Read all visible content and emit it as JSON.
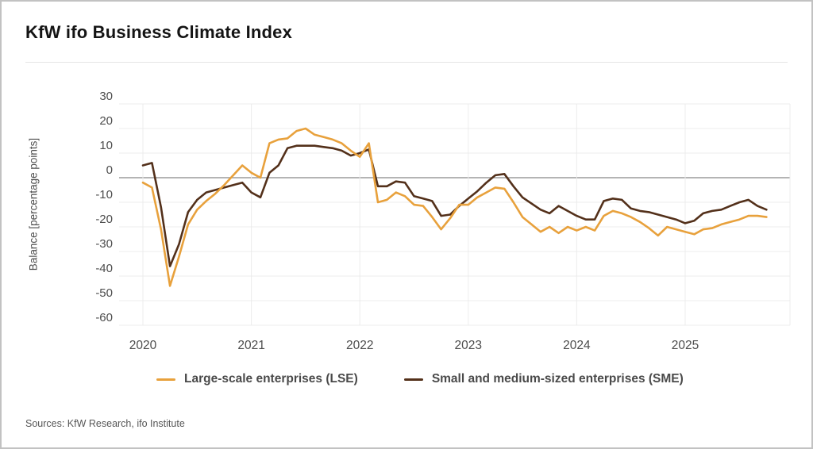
{
  "card": {
    "title": "KfW ifo Business Climate Index",
    "sources": "Sources: KfW Research, ifo Institute"
  },
  "chart_data": {
    "type": "line",
    "title": "KfW ifo Business Climate Index",
    "ylabel": "Balance [percentage points]",
    "ylim": [
      -60,
      30
    ],
    "y_ticks": [
      30,
      20,
      10,
      0,
      -10,
      -20,
      -30,
      -40,
      -50,
      -60
    ],
    "x_tick_labels": [
      "2020",
      "2021",
      "2022",
      "2023",
      "2024",
      "2025"
    ],
    "x_start": "2020-01",
    "x_frequency": "monthly",
    "grid": true,
    "legend_position": "bottom",
    "zero_line": true,
    "colors": {
      "grid": "#ececec",
      "zero_line": "#9c9c9c",
      "axis_text": "#4d4d4d"
    },
    "series": [
      {
        "name": "Large-scale enterprises (LSE)",
        "color": "#E8A13C",
        "values": [
          -2,
          -4,
          -21,
          -44,
          -32,
          -19,
          -13,
          -9.5,
          -6.5,
          -3,
          1,
          5,
          2,
          0,
          14,
          15.5,
          16,
          19,
          20,
          17.5,
          16.5,
          15.5,
          14,
          11,
          8.5,
          14,
          -10,
          -9,
          -6,
          -7.5,
          -11,
          -11.5,
          -16,
          -21,
          -16.5,
          -11,
          -11,
          -8,
          -6,
          -4,
          -4.5,
          -10,
          -16,
          -19,
          -22,
          -20,
          -22.5,
          -20,
          -21.5,
          -20,
          -21.5,
          -15.5,
          -13.5,
          -14.5,
          -16,
          -18,
          -20.5,
          -23.5,
          -20,
          -21,
          -22,
          -23,
          -21,
          -20.5,
          -19,
          -18,
          -17,
          -15.5,
          -15.5,
          -16
        ]
      },
      {
        "name": "Small and medium-sized enterprises (SME)",
        "color": "#53301A",
        "values": [
          5,
          6,
          -12,
          -36,
          -27,
          -14,
          -9,
          -6,
          -5,
          -4,
          -3,
          -2,
          -6,
          -8,
          2,
          5,
          12,
          13,
          13,
          13,
          12.5,
          12,
          11,
          9,
          10,
          11.5,
          -3.5,
          -3.5,
          -1.5,
          -2,
          -7.5,
          -8.5,
          -9.5,
          -15.5,
          -15,
          -11.5,
          -8.5,
          -5.5,
          -2,
          1,
          1.5,
          -3.5,
          -8,
          -10.5,
          -13,
          -14.5,
          -11.5,
          -13.5,
          -15.5,
          -17,
          -17,
          -9.5,
          -8.5,
          -9,
          -12.5,
          -13.5,
          -14,
          -15,
          -16,
          -17,
          -18.5,
          -17.5,
          -14.5,
          -13.5,
          -13,
          -11.5,
          -10,
          -9,
          -11.5,
          -13
        ]
      }
    ]
  }
}
